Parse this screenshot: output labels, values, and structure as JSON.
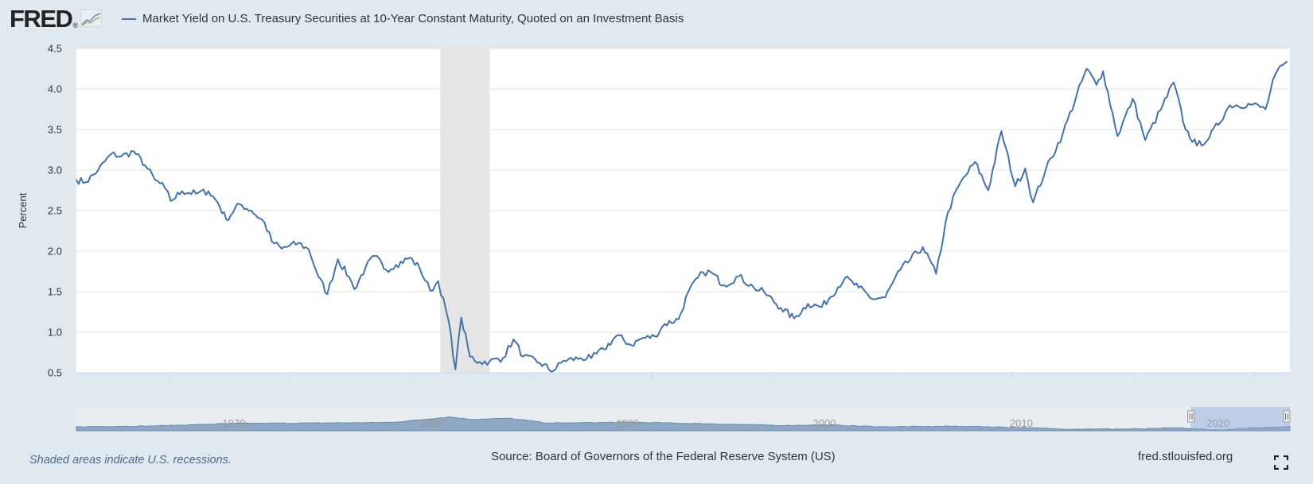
{
  "header": {
    "logo_text": "FRED",
    "logo_registered": "®",
    "logo_icon": "chart-line-icon"
  },
  "colors": {
    "series": "#4572a7",
    "background": "#e1e9f0",
    "plot_background": "#ffffff",
    "recession": "#e5e5e5",
    "grid": "#e6e6e6",
    "navigator_fill": "#8ea7c4"
  },
  "chart_data": {
    "type": "line",
    "title": "",
    "legend": [
      "Market Yield on U.S. Treasury Securities at 10-Year Constant Maturity, Quoted on an Investment Basis"
    ],
    "legend_position": "top-left",
    "xlabel": "",
    "ylabel": "Percent",
    "ylim": [
      0.5,
      4.5
    ],
    "yticks": [
      0.5,
      1.0,
      1.5,
      2.0,
      2.5,
      3.0,
      3.5,
      4.0,
      4.5
    ],
    "ytick_labels": [
      "0.5",
      "1.0",
      "1.5",
      "2.0",
      "2.5",
      "3.0",
      "3.5",
      "4.0",
      "4.5"
    ],
    "xlim": [
      "2018-08-13",
      "2023-08-25"
    ],
    "xticks": [
      "2019-01",
      "2019-07",
      "2020-01",
      "2020-07",
      "2021-01",
      "2021-07",
      "2022-01",
      "2022-07",
      "2023-01",
      "2023-07"
    ],
    "grid": true,
    "recessions": [
      {
        "start": "2020-02-15",
        "end": "2020-04-30"
      }
    ],
    "series": [
      {
        "name": "Market Yield on U.S. Treasury Securities at 10-Year Constant Maturity, Quoted on an Investment Basis",
        "points": [
          [
            "2018-08-13",
            2.88
          ],
          [
            "2018-08-27",
            2.85
          ],
          [
            "2018-09-15",
            3.0
          ],
          [
            "2018-10-05",
            3.2
          ],
          [
            "2018-10-20",
            3.17
          ],
          [
            "2018-11-08",
            3.23
          ],
          [
            "2018-11-25",
            3.06
          ],
          [
            "2018-12-10",
            2.88
          ],
          [
            "2018-12-25",
            2.78
          ],
          [
            "2019-01-03",
            2.62
          ],
          [
            "2019-01-20",
            2.74
          ],
          [
            "2019-02-10",
            2.71
          ],
          [
            "2019-03-01",
            2.74
          ],
          [
            "2019-03-15",
            2.6
          ],
          [
            "2019-03-28",
            2.39
          ],
          [
            "2019-04-17",
            2.58
          ],
          [
            "2019-05-05",
            2.5
          ],
          [
            "2019-05-25",
            2.35
          ],
          [
            "2019-06-05",
            2.12
          ],
          [
            "2019-06-20",
            2.03
          ],
          [
            "2019-07-15",
            2.1
          ],
          [
            "2019-07-31",
            2.02
          ],
          [
            "2019-08-15",
            1.68
          ],
          [
            "2019-08-28",
            1.47
          ],
          [
            "2019-09-13",
            1.9
          ],
          [
            "2019-09-30",
            1.68
          ],
          [
            "2019-10-08",
            1.53
          ],
          [
            "2019-10-25",
            1.8
          ],
          [
            "2019-11-08",
            1.94
          ],
          [
            "2019-11-25",
            1.77
          ],
          [
            "2019-12-10",
            1.83
          ],
          [
            "2019-12-31",
            1.92
          ],
          [
            "2020-01-15",
            1.79
          ],
          [
            "2020-01-31",
            1.51
          ],
          [
            "2020-02-12",
            1.63
          ],
          [
            "2020-02-28",
            1.13
          ],
          [
            "2020-03-09",
            0.54
          ],
          [
            "2020-03-18",
            1.18
          ],
          [
            "2020-03-31",
            0.7
          ],
          [
            "2020-04-15",
            0.63
          ],
          [
            "2020-04-30",
            0.64
          ],
          [
            "2020-05-20",
            0.68
          ],
          [
            "2020-06-05",
            0.91
          ],
          [
            "2020-06-20",
            0.7
          ],
          [
            "2020-07-15",
            0.62
          ],
          [
            "2020-08-04",
            0.52
          ],
          [
            "2020-08-20",
            0.65
          ],
          [
            "2020-09-15",
            0.68
          ],
          [
            "2020-10-01",
            0.68
          ],
          [
            "2020-10-20",
            0.79
          ],
          [
            "2020-11-09",
            0.96
          ],
          [
            "2020-11-30",
            0.84
          ],
          [
            "2020-12-15",
            0.92
          ],
          [
            "2021-01-05",
            0.95
          ],
          [
            "2021-01-20",
            1.1
          ],
          [
            "2021-02-10",
            1.16
          ],
          [
            "2021-02-25",
            1.5
          ],
          [
            "2021-03-19",
            1.74
          ],
          [
            "2021-03-31",
            1.74
          ],
          [
            "2021-04-20",
            1.58
          ],
          [
            "2021-05-12",
            1.69
          ],
          [
            "2021-06-04",
            1.55
          ],
          [
            "2021-06-20",
            1.49
          ],
          [
            "2021-07-15",
            1.3
          ],
          [
            "2021-08-04",
            1.17
          ],
          [
            "2021-08-25",
            1.35
          ],
          [
            "2021-09-15",
            1.31
          ],
          [
            "2021-10-20",
            1.67
          ],
          [
            "2021-11-10",
            1.55
          ],
          [
            "2021-12-01",
            1.41
          ],
          [
            "2021-12-20",
            1.43
          ],
          [
            "2022-01-12",
            1.77
          ],
          [
            "2022-02-15",
            2.05
          ],
          [
            "2022-03-07",
            1.72
          ],
          [
            "2022-03-25",
            2.48
          ],
          [
            "2022-04-10",
            2.8
          ],
          [
            "2022-05-05",
            3.1
          ],
          [
            "2022-05-25",
            2.75
          ],
          [
            "2022-06-14",
            3.48
          ],
          [
            "2022-07-05",
            2.8
          ],
          [
            "2022-07-20",
            3.02
          ],
          [
            "2022-08-01",
            2.6
          ],
          [
            "2022-08-20",
            3.0
          ],
          [
            "2022-09-15",
            3.45
          ],
          [
            "2022-10-21",
            4.25
          ],
          [
            "2022-11-05",
            4.05
          ],
          [
            "2022-11-15",
            4.22
          ],
          [
            "2022-12-07",
            3.42
          ],
          [
            "2022-12-30",
            3.88
          ],
          [
            "2023-01-18",
            3.37
          ],
          [
            "2023-02-10",
            3.74
          ],
          [
            "2023-03-02",
            4.08
          ],
          [
            "2023-03-20",
            3.5
          ],
          [
            "2023-04-06",
            3.3
          ],
          [
            "2023-04-25",
            3.4
          ],
          [
            "2023-05-26",
            3.8
          ],
          [
            "2023-06-30",
            3.81
          ],
          [
            "2023-07-19",
            3.75
          ],
          [
            "2023-08-03",
            4.18
          ],
          [
            "2023-08-21",
            4.34
          ]
        ]
      }
    ],
    "navigator": {
      "tick_labels": [
        "1970",
        "1980",
        "1990",
        "2000",
        "2010",
        "2020"
      ],
      "range": [
        "1962-01-02",
        "2023-08-25"
      ],
      "selected_range": [
        "2018-08-13",
        "2023-08-25"
      ]
    }
  },
  "footer": {
    "note": "Shaded areas indicate U.S. recessions.",
    "source": "Source: Board of Governors of the Federal Reserve System (US)",
    "url": "fred.stlouisfed.org"
  }
}
